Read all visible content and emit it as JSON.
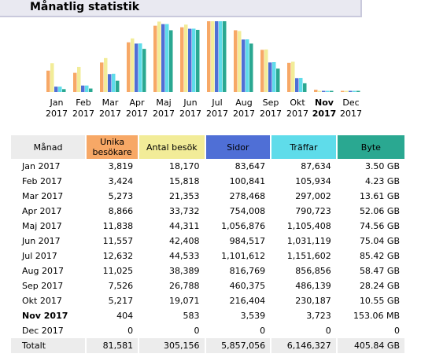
{
  "title": "Månatlig statistik",
  "colors": {
    "unika": "#f7a866",
    "besok": "#f2ec98",
    "sidor": "#4f6fd6",
    "traffar": "#5fdcea",
    "byte": "#2aa891"
  },
  "chart_data": {
    "type": "bar",
    "categories": [
      "Jan 2017",
      "Feb 2017",
      "Mar 2017",
      "Apr 2017",
      "Maj 2017",
      "Jun 2017",
      "Jul 2017",
      "Aug 2017",
      "Sep 2017",
      "Okt 2017",
      "Nov 2017",
      "Dec 2017"
    ],
    "month_labels": [
      "Jan",
      "Feb",
      "Mar",
      "Apr",
      "Maj",
      "Jun",
      "Jul",
      "Aug",
      "Sep",
      "Okt",
      "Nov",
      "Dec"
    ],
    "year_label": "2017",
    "current_index": 10,
    "series": [
      {
        "name": "Unika besökare",
        "values": [
          3819,
          3424,
          5273,
          8866,
          11838,
          11557,
          12632,
          11025,
          7526,
          5217,
          404,
          0
        ]
      },
      {
        "name": "Antal besök",
        "values": [
          18170,
          15818,
          21353,
          33732,
          44311,
          42408,
          44533,
          38389,
          26788,
          19071,
          583,
          0
        ]
      },
      {
        "name": "Sidor",
        "values": [
          83647,
          100841,
          278468,
          754008,
          1056876,
          984517,
          1101612,
          816769,
          460375,
          216404,
          3539,
          0
        ]
      },
      {
        "name": "Träffar",
        "values": [
          87634,
          105934,
          297002,
          790723,
          1105408,
          1031119,
          1151602,
          856856,
          486139,
          230187,
          3723,
          0
        ]
      },
      {
        "name": "Byte",
        "values": [
          3.5,
          4.23,
          13.61,
          52.06,
          74.56,
          75.04,
          85.42,
          58.47,
          28.24,
          10.55,
          0.153,
          0
        ]
      }
    ]
  },
  "table": {
    "headers": {
      "month": "Månad",
      "unika_1": "Unika",
      "unika_2": "besökare",
      "besok": "Antal besök",
      "sidor": "Sidor",
      "traffar": "Träffar",
      "byte": "Byte"
    },
    "rows": [
      {
        "month": "Jan 2017",
        "unika": "3,819",
        "besok": "18,170",
        "sidor": "83,647",
        "traffar": "87,634",
        "byte": "3.50 GB"
      },
      {
        "month": "Feb 2017",
        "unika": "3,424",
        "besok": "15,818",
        "sidor": "100,841",
        "traffar": "105,934",
        "byte": "4.23 GB"
      },
      {
        "month": "Mar 2017",
        "unika": "5,273",
        "besok": "21,353",
        "sidor": "278,468",
        "traffar": "297,002",
        "byte": "13.61 GB"
      },
      {
        "month": "Apr 2017",
        "unika": "8,866",
        "besok": "33,732",
        "sidor": "754,008",
        "traffar": "790,723",
        "byte": "52.06 GB"
      },
      {
        "month": "Maj 2017",
        "unika": "11,838",
        "besok": "44,311",
        "sidor": "1,056,876",
        "traffar": "1,105,408",
        "byte": "74.56 GB"
      },
      {
        "month": "Jun 2017",
        "unika": "11,557",
        "besok": "42,408",
        "sidor": "984,517",
        "traffar": "1,031,119",
        "byte": "75.04 GB"
      },
      {
        "month": "Jul 2017",
        "unika": "12,632",
        "besok": "44,533",
        "sidor": "1,101,612",
        "traffar": "1,151,602",
        "byte": "85.42 GB"
      },
      {
        "month": "Aug 2017",
        "unika": "11,025",
        "besok": "38,389",
        "sidor": "816,769",
        "traffar": "856,856",
        "byte": "58.47 GB"
      },
      {
        "month": "Sep 2017",
        "unika": "7,526",
        "besok": "26,788",
        "sidor": "460,375",
        "traffar": "486,139",
        "byte": "28.24 GB"
      },
      {
        "month": "Okt 2017",
        "unika": "5,217",
        "besok": "19,071",
        "sidor": "216,404",
        "traffar": "230,187",
        "byte": "10.55 GB"
      },
      {
        "month": "Nov 2017",
        "unika": "404",
        "besok": "583",
        "sidor": "3,539",
        "traffar": "3,723",
        "byte": "153.06 MB"
      },
      {
        "month": "Dec 2017",
        "unika": "0",
        "besok": "0",
        "sidor": "0",
        "traffar": "0",
        "byte": "0"
      }
    ],
    "total": {
      "month": "Totalt",
      "unika": "81,581",
      "besok": "305,156",
      "sidor": "5,857,056",
      "traffar": "6,146,327",
      "byte": "405.84 GB"
    }
  }
}
